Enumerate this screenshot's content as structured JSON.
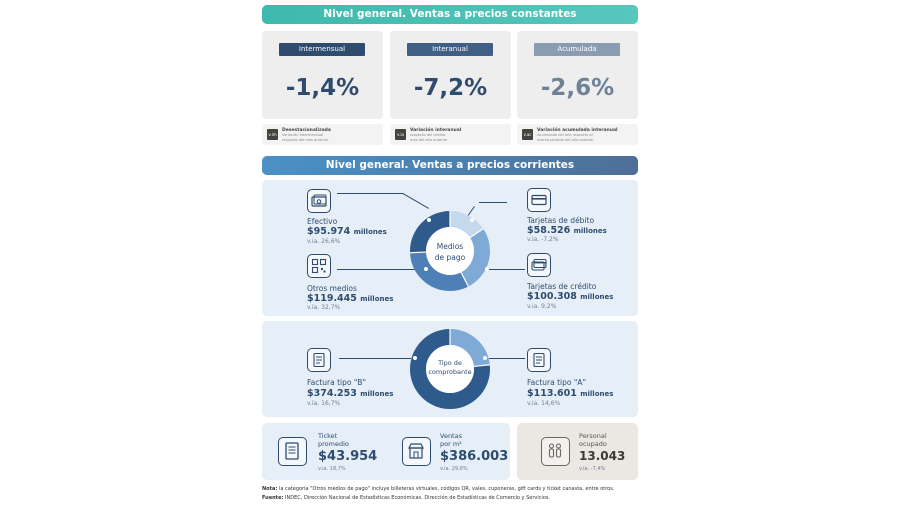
{
  "banner_constantes": "Nivel general. Ventas a precios constantes",
  "banner_corrientes": "Nivel general. Ventas a precios corrientes",
  "kpis": [
    {
      "pill": "Intermensual",
      "value": "-1,4%",
      "pill_color": "#2f4c6e",
      "value_color": "#2f4c6e"
    },
    {
      "pill": "Interanual",
      "value": "-7,2%",
      "pill_color": "#3f5f84",
      "value_color": "#2f4c6e"
    },
    {
      "pill": "Acumulada",
      "value": "-2,6%",
      "pill_color": "#8a9cb1",
      "value_color": "#6e8197"
    }
  ],
  "notes": [
    {
      "icon": "v.im",
      "line1": "Desestacionalizada",
      "line2": "Variación intermensual",
      "line3": "respecto del mes anterior"
    },
    {
      "icon": "v.ia",
      "line1": "Variación interanual",
      "line2": "respecto del mismo",
      "line3": "mes del año anterior"
    },
    {
      "icon": "v.ac",
      "line1": "Variación acumulada interanual",
      "line2": "Acumulado del año respecto al",
      "line3": "mismo período del año anterior"
    }
  ],
  "medios": {
    "center_line1": "Medios",
    "center_line2": "de pago",
    "efectivo": {
      "label": "Efectivo",
      "amount": "$95.974",
      "unit": "millones",
      "va": "v.ia. 26,6%"
    },
    "debito": {
      "label": "Tarjetas de débito",
      "amount": "$58.526",
      "unit": "millones",
      "va": "v.ia. -7,2%"
    },
    "otros": {
      "label": "Otros medios",
      "amount": "$119.445",
      "unit": "millones",
      "va": "v.ia. 32,7%"
    },
    "credito": {
      "label": "Tarjetas de crédito",
      "amount": "$100.308",
      "unit": "millones",
      "va": "v.ia. 9,2%"
    },
    "slices": [
      {
        "name": "Tarjetas de débito",
        "share": 0.156,
        "color": "#c5d9ee"
      },
      {
        "name": "Tarjetas de crédito",
        "share": 0.268,
        "color": "#7faad6"
      },
      {
        "name": "Otros medios",
        "share": 0.319,
        "color": "#4e7fb6"
      },
      {
        "name": "Efectivo",
        "share": 0.257,
        "color": "#2f5a8c"
      }
    ]
  },
  "comprobante": {
    "center_line1": "Tipo de",
    "center_line2": "comprobante",
    "facturaB": {
      "label": "Factura tipo \"B\"",
      "amount": "$374.253",
      "unit": "millones",
      "va": "v.ia. 16,7%"
    },
    "facturaA": {
      "label": "Factura tipo \"A\"",
      "amount": "$113.601",
      "unit": "millones",
      "va": "v.ia. 14,6%"
    },
    "slices": [
      {
        "name": "Factura tipo \"A\"",
        "share": 0.233,
        "color": "#7faad6"
      },
      {
        "name": "Factura tipo \"B\"",
        "share": 0.767,
        "color": "#2f5a8c"
      }
    ]
  },
  "ticket": {
    "label1": "Ticket",
    "label2": "promedio",
    "amount": "$43.954",
    "va": "v.ia. 18,7%"
  },
  "ventas_m2": {
    "label1": "Ventas",
    "label2": "por m²",
    "amount": "$386.003",
    "va": "v.ia. 29,6%"
  },
  "personal": {
    "label1": "Personal",
    "label2": "ocupado",
    "amount": "13.043",
    "va": "v.ia. -7,4%"
  },
  "footnote": {
    "nota_label": "Nota:",
    "nota_text": " la categoría \"Otros medios de pago\" incluye billeteras virtuales, códigos QR, vales, cuponeras, gift cards y ticket canasta, entre otros.",
    "fuente_label": "Fuente:",
    "fuente_text": " INDEC, Dirección Nacional de Estadísticas Económicas. Dirección de Estadísticas de Comercio y Servicios."
  }
}
